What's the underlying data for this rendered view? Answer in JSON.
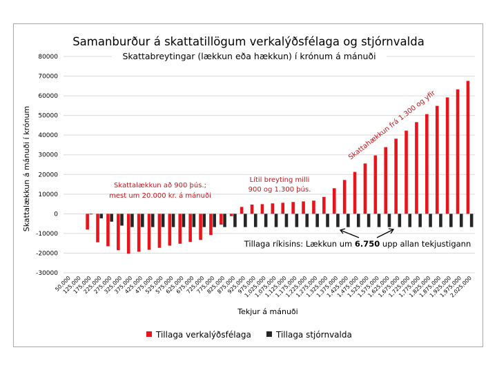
{
  "chart_data": {
    "type": "bar",
    "title": "Samanburður á skattatillögum verkalýðsfélaga og stjórnvalda",
    "subtitle": "Skattabreytingar (lækkun eða hækkun) í krónum á mánuði",
    "xlabel": "Tekjur á mánuði",
    "ylabel": "Skattalækkun á mánuði í krónum",
    "ylim": [
      -30000,
      80000
    ],
    "yticks": [
      80000,
      70000,
      60000,
      50000,
      40000,
      30000,
      20000,
      10000,
      0,
      -10000,
      -20000,
      -30000
    ],
    "grid": true,
    "legend_position": "bottom",
    "categories": [
      "50,000",
      "125,000",
      "175,000",
      "225,000",
      "275,000",
      "325,000",
      "375,000",
      "425,000",
      "475,000",
      "525,000",
      "575,000",
      "625,000",
      "675,000",
      "725,000",
      "775,000",
      "825,000",
      "875,000",
      "925,000",
      "975,000",
      "1,025,000",
      "1,075,000",
      "1,125,000",
      "1,175,000",
      "1,225,000",
      "1,275,000",
      "1,325,000",
      "1,375,000",
      "1,425,000",
      "1,475,000",
      "1,525,000",
      "1,575,000",
      "1,625,000",
      "1,675,000",
      "1,725,000",
      "1,775,000",
      "1,825,000",
      "1,875,000",
      "1,925,000",
      "1,975,000",
      "2,025,000"
    ],
    "series": [
      {
        "name": "Tillaga verkalýðsfélaga",
        "color": "#e8141b",
        "values": [
          0,
          0,
          -8000,
          -14500,
          -16500,
          -18500,
          -20300,
          -19300,
          -18300,
          -17300,
          -16200,
          -15200,
          -14300,
          -13300,
          -10800,
          -5500,
          -1200,
          3500,
          4700,
          4900,
          5300,
          5600,
          6000,
          6300,
          6700,
          8600,
          13000,
          17200,
          21300,
          25600,
          29700,
          33900,
          38200,
          42300,
          46600,
          50700,
          54900,
          59200,
          63300,
          67600
        ]
      },
      {
        "name": "Tillaga stjórnvalda",
        "color": "#262626",
        "values": [
          0,
          0,
          -300,
          -2300,
          -4000,
          -6000,
          -6750,
          -6750,
          -6750,
          -6750,
          -6750,
          -6750,
          -6750,
          -6750,
          -6750,
          -6750,
          -6750,
          -6750,
          -6750,
          -6750,
          -6750,
          -6750,
          -6750,
          -6750,
          -6750,
          -6750,
          -6750,
          -6750,
          -6750,
          -6750,
          -6750,
          -6750,
          -6750,
          -6750,
          -6750,
          -6750,
          -6750,
          -6750,
          -6750,
          -6750
        ]
      }
    ],
    "annotations": {
      "decrease_line1": "Skattalækkun að 900 þús.;",
      "decrease_line2": "mest um 20.000 kr. á mánuði",
      "small_change_line1": "Lítil breyting milli",
      "small_change_line2": "900 og 1.300 þús.",
      "increase": "Skattahækkun frá 1.300 og yfir",
      "gov_prefix": "Tillaga ríkisins: Lækkun um ",
      "gov_bold": "6.750",
      "gov_suffix": " upp allan tekjustigann"
    },
    "annotation_color": "#c0151b"
  }
}
